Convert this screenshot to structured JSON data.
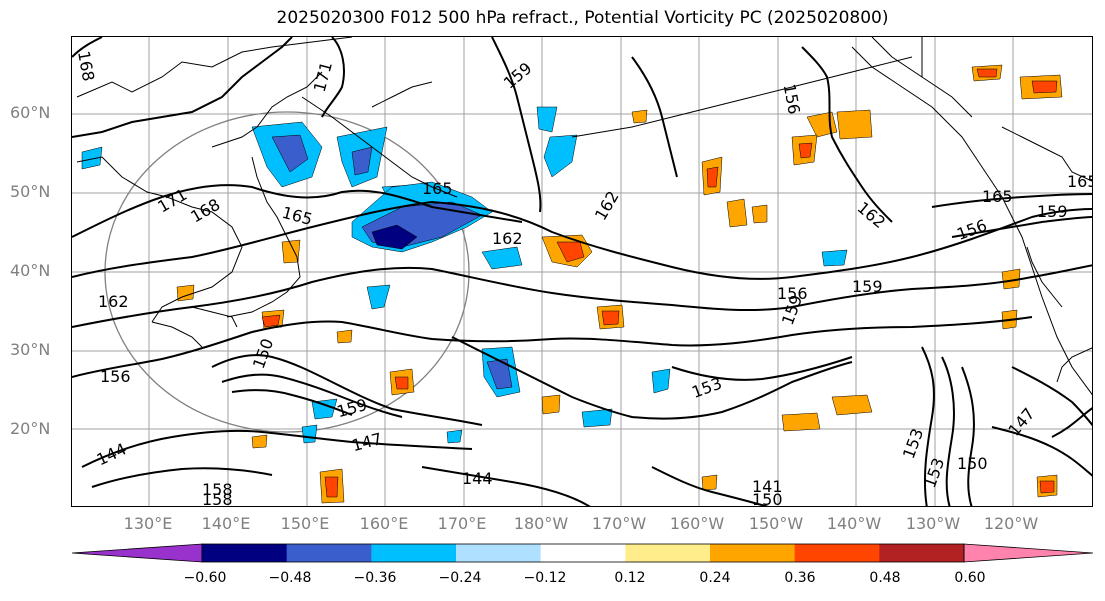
{
  "title": "2025020300 F012 500 hPa refract., Potential Vorticity PC (2025020800)",
  "map": {
    "lat_labels": [
      "60°N",
      "50°N",
      "40°N",
      "30°N",
      "20°N"
    ],
    "lon_labels": [
      "130°E",
      "140°E",
      "150°E",
      "160°E",
      "170°E",
      "180°W",
      "170°W",
      "160°W",
      "150°W",
      "140°W",
      "130°W",
      "120°W"
    ],
    "contour_labels": [
      "168",
      "171",
      "171",
      "168",
      "165",
      "165",
      "162",
      "162",
      "162",
      "162",
      "165",
      "159",
      "156",
      "159",
      "156",
      "156",
      "159",
      "156",
      "150",
      "159",
      "147",
      "144",
      "144",
      "153",
      "141",
      "150",
      "153",
      "153",
      "150",
      "147",
      "159",
      "165",
      "158",
      "158"
    ]
  },
  "colorbar": {
    "colors": [
      "#9932cc",
      "#000080",
      "#3a5fcd",
      "#00bfff",
      "#b0e0ff",
      "#ffffff",
      "#ffec8b",
      "#ffa500",
      "#ff4500",
      "#b22222",
      "#ff83ac"
    ],
    "tick_labels": [
      "−0.60",
      "−0.48",
      "−0.36",
      "−0.24",
      "−0.12",
      "0.12",
      "0.24",
      "0.36",
      "0.48",
      "0.60"
    ]
  }
}
